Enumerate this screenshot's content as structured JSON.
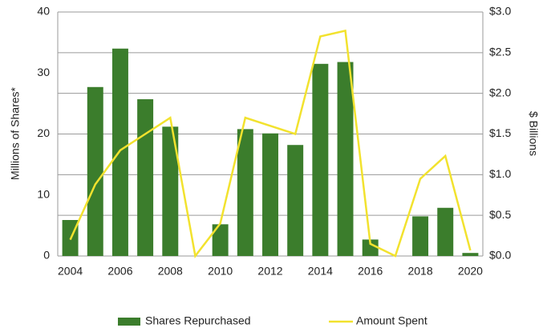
{
  "chart_data": {
    "type": "bar-line",
    "y_label": "Millions of Shares*",
    "y2_label": "$ Billions",
    "categories": [
      "2004",
      null,
      "2006",
      null,
      "2008",
      null,
      "2010",
      null,
      "2012",
      null,
      "2014",
      null,
      "2016",
      null,
      "2018",
      null,
      "2020"
    ],
    "series": [
      {
        "name": "Shares Repurchased",
        "type": "bar",
        "color": "#3b7d2c",
        "values": [
          5.9,
          27.7,
          34,
          25.7,
          21.2,
          0,
          5.2,
          20.8,
          20.1,
          18.2,
          31.5,
          31.8,
          2.7,
          0,
          6.5,
          7.9,
          0.5
        ]
      },
      {
        "name": "Amount Spent",
        "type": "line",
        "axis": "y2",
        "color": "#f2e22e",
        "values": [
          0.2,
          0.88,
          1.3,
          1.5,
          1.7,
          0.0,
          0.4,
          1.7,
          1.6,
          1.5,
          2.7,
          2.77,
          0.15,
          0.0,
          0.95,
          1.23,
          0.07
        ]
      }
    ],
    "ylim": [
      0,
      40
    ],
    "yticks": [
      0,
      10,
      20,
      30,
      40
    ],
    "y2lim": [
      0,
      3
    ],
    "y2ticks": [
      {
        "value": 0,
        "label": "$0.0"
      },
      {
        "value": 0.5,
        "label": "$0.5"
      },
      {
        "value": 1,
        "label": "$1.0"
      },
      {
        "value": 1.5,
        "label": "$1.5"
      },
      {
        "value": 2,
        "label": "$2.0"
      },
      {
        "value": 2.5,
        "label": "$2.5"
      },
      {
        "value": 3,
        "label": "$3.0"
      }
    ],
    "grid": true,
    "legend": "bottom"
  }
}
